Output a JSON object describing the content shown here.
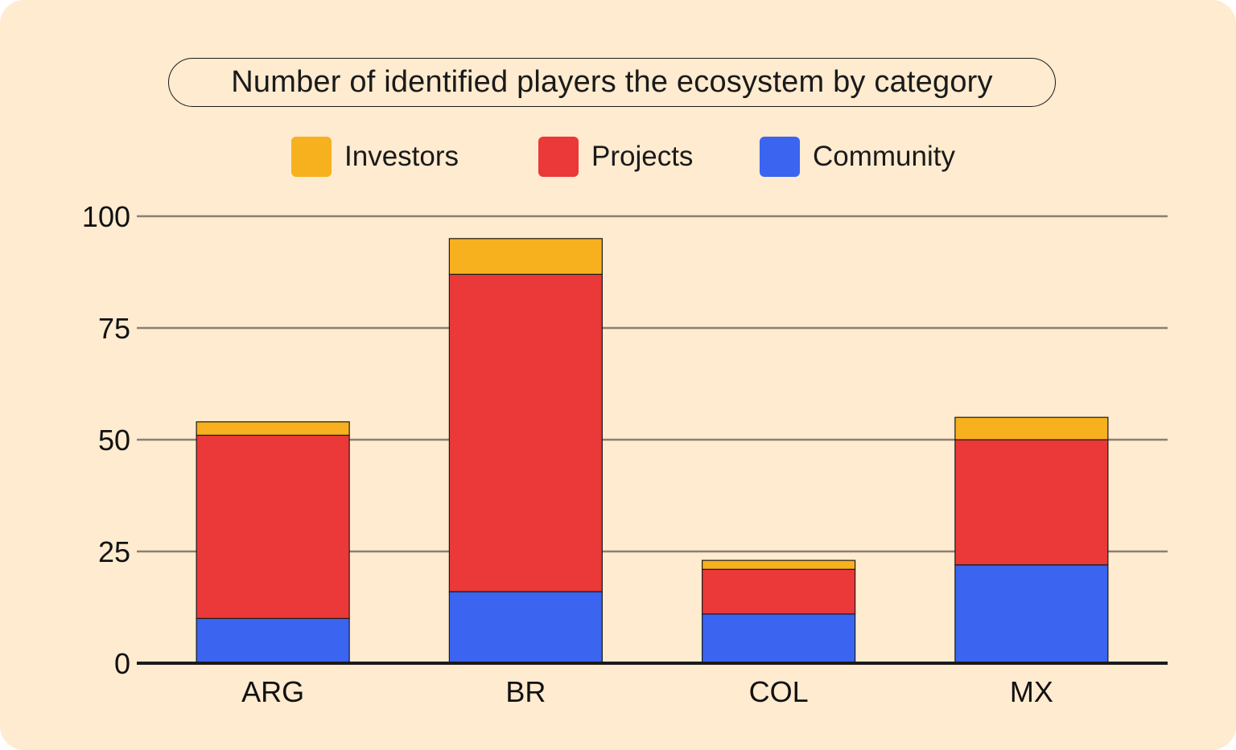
{
  "chart_data": {
    "type": "bar",
    "stacked": true,
    "title": "Number of identified players the ecosystem by category",
    "categories": [
      "ARG",
      "BR",
      "COL",
      "MX"
    ],
    "series": [
      {
        "name": "Community",
        "color": "#3b64f0",
        "values": [
          10,
          16,
          11,
          22
        ]
      },
      {
        "name": "Projects",
        "color": "#eb3838",
        "values": [
          41,
          71,
          10,
          28
        ]
      },
      {
        "name": "Investors",
        "color": "#f7b01e",
        "values": [
          3,
          8,
          2,
          5
        ]
      }
    ],
    "legend_order": [
      "Investors",
      "Projects",
      "Community"
    ],
    "legend_position": "top-center",
    "yticks": [
      "0",
      "25",
      "50",
      "75",
      "100"
    ],
    "ylim": [
      0,
      100
    ],
    "grid": true,
    "xlabel": "",
    "ylabel": ""
  }
}
